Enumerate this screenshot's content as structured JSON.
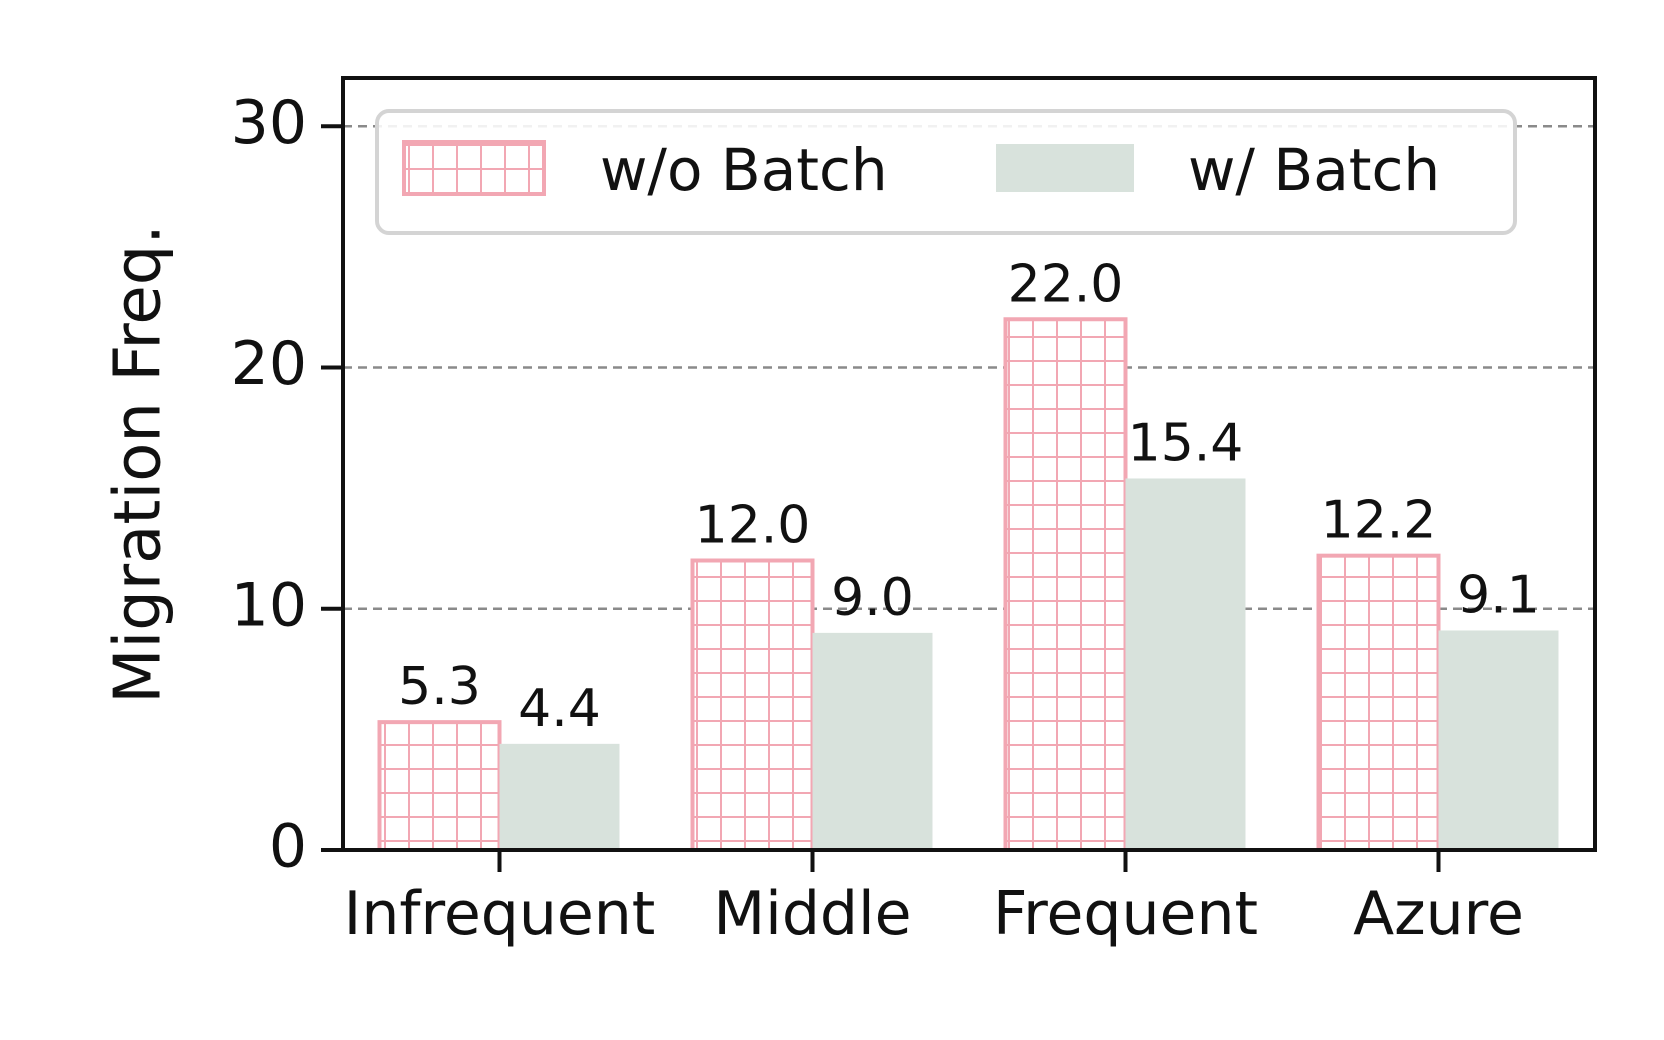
{
  "chart_data": {
    "type": "bar",
    "categories": [
      "Infrequent",
      "Middle",
      "Frequent",
      "Azure"
    ],
    "series": [
      {
        "name": "w/o Batch",
        "values": [
          5.3,
          12.0,
          22.0,
          12.2
        ],
        "labels": [
          "5.3",
          "12.0",
          "22.0",
          "12.2"
        ],
        "color": "#f2a7b3",
        "pattern": "grid-hatch"
      },
      {
        "name": "w/ Batch",
        "values": [
          4.4,
          9.0,
          15.4,
          9.1
        ],
        "labels": [
          "4.4",
          "9.0",
          "15.4",
          "9.1"
        ],
        "color": "#d8e2dc",
        "pattern": "solid"
      }
    ],
    "xlabel": "",
    "ylabel": "Migration Freq.",
    "ylim": [
      0,
      32
    ],
    "yticks": [
      0,
      10,
      20,
      30
    ],
    "ytick_labels": [
      "0",
      "10",
      "20",
      "30"
    ],
    "grid": "horizontal-dashed",
    "legend_placement": "top"
  }
}
